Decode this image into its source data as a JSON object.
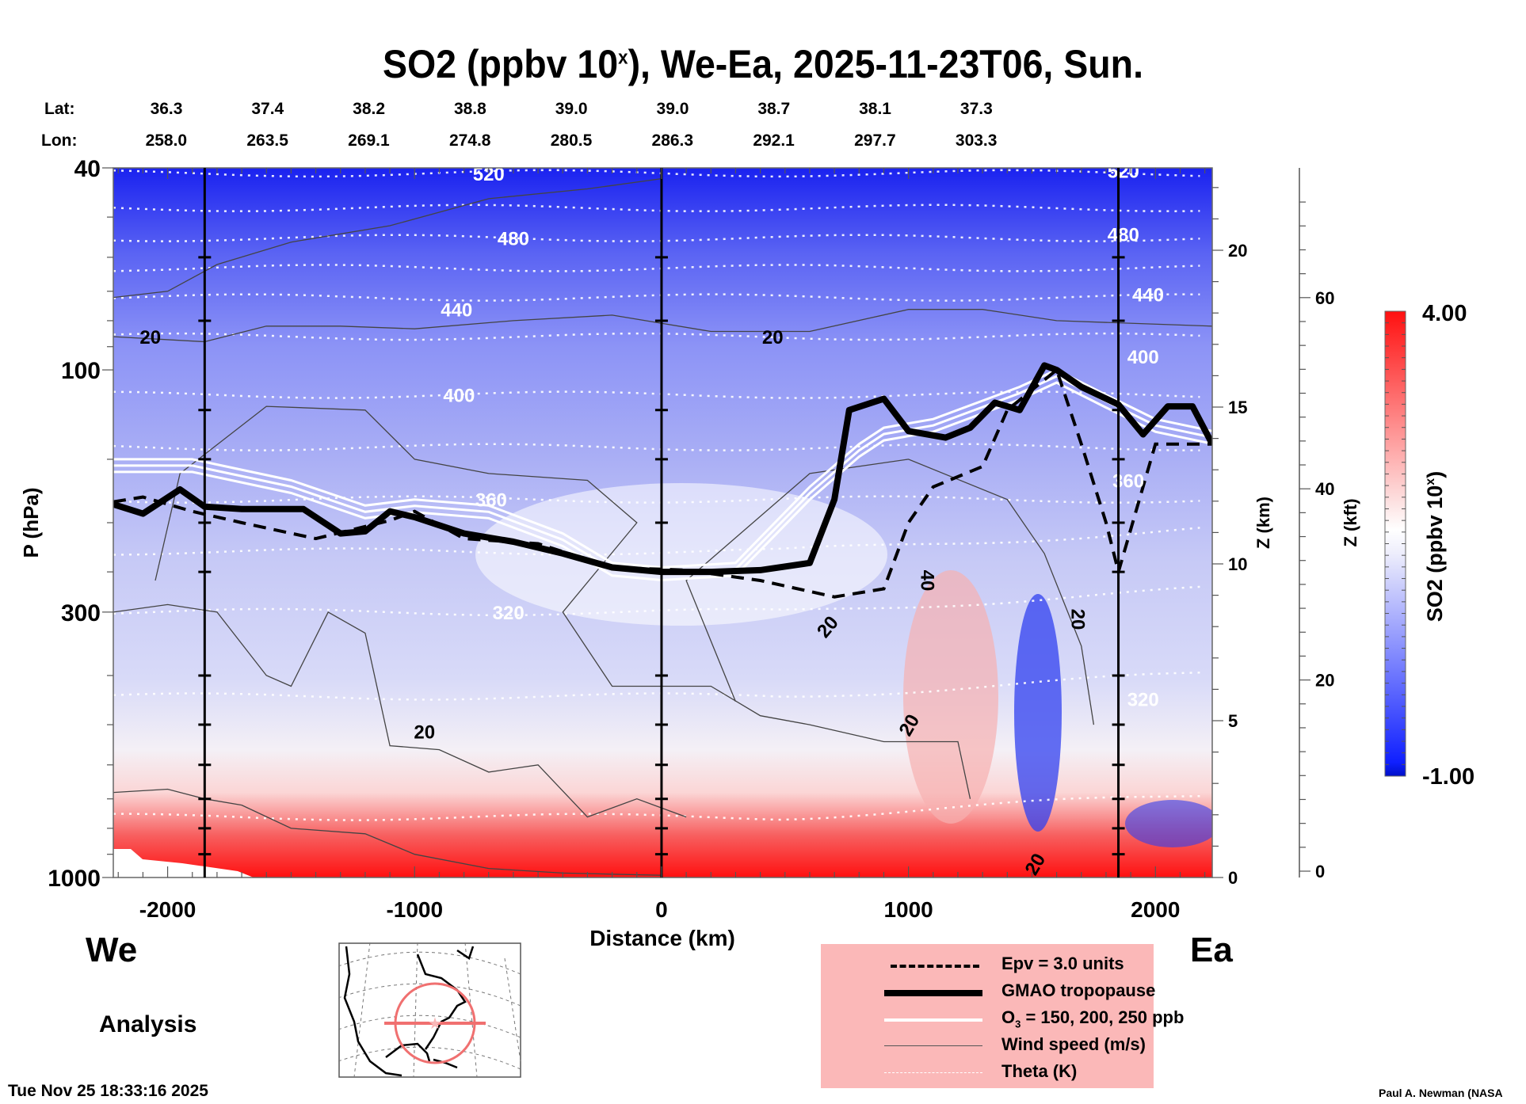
{
  "chart_data": {
    "type": "heatmap",
    "title": "SO2 (ppbv 10",
    "title_sup": "x",
    "title_rest": "), We-Ea, 2025-11-23T06, Sun.",
    "xlabel": "Distance (km)",
    "ylabel": "P (hPa)",
    "y2label": "Z (km)",
    "y3label": "Z (kft)",
    "xlim": [
      -2220,
      2230
    ],
    "ylim": [
      1000,
      40
    ],
    "yscale": "log",
    "xticks": [
      -2000,
      -1000,
      0,
      1000,
      2000
    ],
    "xtick_labels": [
      "-2000",
      "-1000",
      "0",
      "1000",
      "2000"
    ],
    "yticks": [
      40,
      100,
      300,
      1000
    ],
    "ytick_labels": [
      "40",
      "100",
      "300",
      "1000"
    ],
    "z_km_ticks": [
      0,
      5,
      10,
      15,
      20
    ],
    "z_kft_ticks": [
      0,
      20,
      40,
      60
    ],
    "vertical_markers_km": [
      -1850,
      0,
      1850
    ],
    "lat_label": "Lat:",
    "lon_label": "Lon:",
    "lat": [
      "36.3",
      "37.4",
      "38.2",
      "38.8",
      "39.0",
      "39.0",
      "38.7",
      "38.1",
      "37.3"
    ],
    "lon": [
      "258.0",
      "263.5",
      "269.1",
      "274.8",
      "280.5",
      "286.3",
      "292.1",
      "297.7",
      "303.3"
    ],
    "latlon_positions_km": [
      -2000,
      -1590,
      -1180,
      -770,
      -360,
      50,
      460,
      870,
      1280
    ],
    "colorbar": {
      "label": "SO2 (ppbv 10",
      "label_sup": "x",
      "label_end": ")",
      "min": -1.0,
      "max": 4.0,
      "min_label": "-1.00",
      "max_label": "4.00",
      "colors": [
        "#0000c8",
        "#ffffff",
        "#ff0000"
      ],
      "levels": 40
    },
    "theta_labels": [
      {
        "text": "520",
        "x_km": -700,
        "p": 41
      },
      {
        "text": "480",
        "x_km": -600,
        "p": 55
      },
      {
        "text": "440",
        "x_km": -830,
        "p": 76
      },
      {
        "text": "400",
        "x_km": -820,
        "p": 112
      },
      {
        "text": "360",
        "x_km": -690,
        "p": 180
      },
      {
        "text": "320",
        "x_km": -620,
        "p": 300
      },
      {
        "text": "520",
        "x_km": 1870,
        "p": 40.5
      },
      {
        "text": "480",
        "x_km": 1870,
        "p": 54
      },
      {
        "text": "440",
        "x_km": 1970,
        "p": 71
      },
      {
        "text": "400",
        "x_km": 1950,
        "p": 94
      },
      {
        "text": "360",
        "x_km": 1890,
        "p": 165
      },
      {
        "text": "320",
        "x_km": 1950,
        "p": 445
      }
    ],
    "wind_labels": [
      {
        "text": "20",
        "x_km": -2070,
        "p": 86,
        "rot": 0
      },
      {
        "text": "20",
        "x_km": 450,
        "p": 86,
        "rot": 0
      },
      {
        "text": "20",
        "x_km": -960,
        "p": 515,
        "rot": 0
      },
      {
        "text": "20",
        "x_km": 670,
        "p": 320,
        "rot": -50
      },
      {
        "text": "40",
        "x_km": 1080,
        "p": 260,
        "rot": 90
      },
      {
        "text": "20",
        "x_km": 1690,
        "p": 310,
        "rot": 90
      },
      {
        "text": "20",
        "x_km": 1000,
        "p": 500,
        "rot": -60
      },
      {
        "text": "20",
        "x_km": 1510,
        "p": 940,
        "rot": -60
      }
    ],
    "tropopause_p": {
      "x_km": [
        -2220,
        -2100,
        -1950,
        -1850,
        -1700,
        -1450,
        -1300,
        -1200,
        -1100,
        -1000,
        -800,
        -600,
        -400,
        -200,
        0,
        200,
        400,
        600,
        700,
        760,
        900,
        1000,
        1150,
        1250,
        1350,
        1450,
        1550,
        1600,
        1700,
        1850,
        1950,
        2050,
        2150,
        2230
      ],
      "p": [
        184,
        192,
        172,
        186,
        188,
        188,
        210,
        208,
        190,
        195,
        210,
        218,
        230,
        245,
        250,
        250,
        248,
        240,
        180,
        120,
        114,
        132,
        136,
        130,
        116,
        120,
        98,
        100,
        108,
        117,
        134,
        118,
        118,
        140
      ]
    },
    "series": [
      {
        "name": "Epv = 3.0 units",
        "style": "dashed"
      },
      {
        "name": "GMAO tropopause",
        "style": "thick"
      },
      {
        "name": "O3 = 150, 200, 250 ppb",
        "style": "white"
      },
      {
        "name": "Wind speed (m/s)",
        "style": "thin"
      },
      {
        "name": "Theta (K)",
        "style": "dotted"
      }
    ]
  },
  "legend": {
    "items": [
      {
        "label": "Epv = 3.0 units"
      },
      {
        "label": "GMAO tropopause"
      },
      {
        "label_main": "O",
        "label_sub": "3",
        "label_rest": " = 150, 200, 250 ppb"
      },
      {
        "label": "Wind speed (m/s)"
      },
      {
        "label": "Theta (K)"
      }
    ]
  },
  "labels": {
    "west": "We",
    "east": "Ea",
    "analysis": "Analysis",
    "timestamp": "Tue Nov 25 18:33:16 2025",
    "credit": "Paul A. Newman (NASA"
  },
  "colors": {
    "legend_bg": "#fbb8b8",
    "map_track": "#f07070"
  }
}
